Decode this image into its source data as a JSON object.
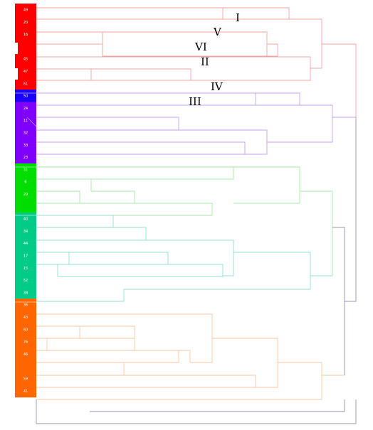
{
  "leaf_labels": [
    "49",
    "20",
    "16",
    "",
    "45",
    "47",
    "61",
    "50",
    "24",
    "11",
    "32",
    "33",
    "23",
    "31",
    "6",
    "29",
    "",
    "40",
    "34",
    "44",
    "17",
    "15",
    "52",
    "38",
    "36",
    "43",
    "60",
    "26",
    "46",
    "",
    "59",
    "41"
  ],
  "leaf_colors": [
    "#ff0000",
    "#ff0000",
    "#ff0000",
    "#ff0000",
    "#ff0000",
    "#ff0000",
    "#ff0000",
    "#1a00ff",
    "#8000ff",
    "#8000ff",
    "#8000ff",
    "#8000ff",
    "#8000ff",
    "#00dd00",
    "#00dd00",
    "#00dd00",
    "#00dd00",
    "#00cc88",
    "#00cc88",
    "#00cc88",
    "#00cc88",
    "#00cc88",
    "#00cc88",
    "#00cc88",
    "#ff6600",
    "#ff6600",
    "#ff6600",
    "#ff6600",
    "#ff6600",
    "#ff6600",
    "#ff6600",
    "#ff6600"
  ],
  "clade_labels": [
    "I",
    "V",
    "VI",
    "II",
    "IV",
    "III"
  ],
  "branch_colors": {
    "red": "#f4a3a3",
    "purple": "#c7a0f0",
    "green": "#a6eaa6",
    "teal": "#90e0d0",
    "orange": "#fcc6a0",
    "backbone": "#9b8fb5"
  }
}
